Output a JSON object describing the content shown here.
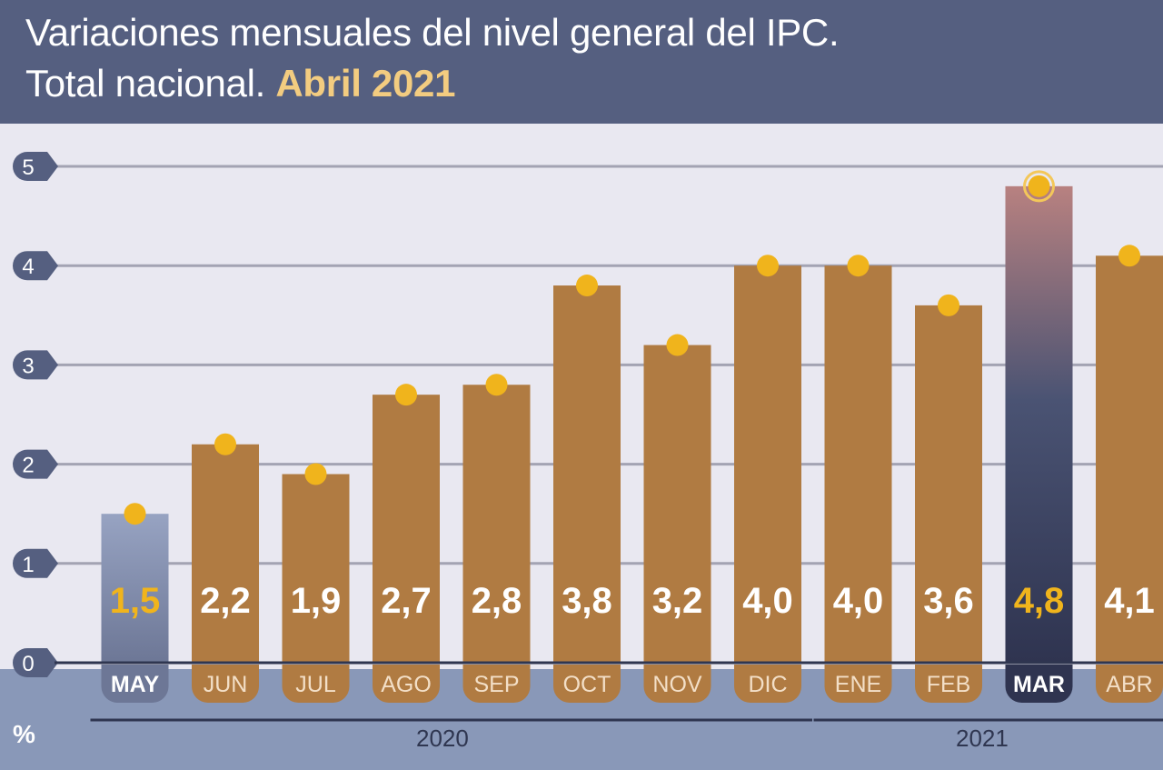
{
  "header": {
    "title_line1": "Variaciones mensuales del nivel general del IPC.",
    "title_line2": "Total nacional.",
    "title_highlight": "Abril 2021"
  },
  "chart_data": {
    "type": "bar",
    "title": "Variaciones mensuales del nivel general del IPC. Total nacional. Abril 2021",
    "ylabel": "%",
    "ylim": [
      0,
      5
    ],
    "yticks": [
      "0",
      "1",
      "2",
      "3",
      "4",
      "5"
    ],
    "categories": [
      "MAY",
      "JUN",
      "JUL",
      "AGO",
      "SEP",
      "OCT",
      "NOV",
      "DIC",
      "ENE",
      "FEB",
      "MAR",
      "ABR"
    ],
    "values": [
      1.5,
      2.2,
      1.9,
      2.7,
      2.8,
      3.8,
      3.2,
      4.0,
      4.0,
      3.6,
      4.8,
      4.1
    ],
    "value_labels": [
      "1,5",
      "2,2",
      "1,9",
      "2,7",
      "2,8",
      "3,8",
      "3,2",
      "4,0",
      "4,0",
      "3,6",
      "4,8",
      "4,1"
    ],
    "highlighted": [
      "MAY",
      "MAR"
    ],
    "year_groups": [
      {
        "label": "2020",
        "from": "MAY",
        "to": "DIC"
      },
      {
        "label": "2021",
        "from": "ENE",
        "to": "ABR"
      }
    ],
    "grid": true,
    "colors": {
      "bar": "#b07b42",
      "bar_may": "#8a95b4",
      "bar_mar_top": "#b57f7e",
      "bar_mar_bottom": "#353b57",
      "dot": "#f0b41c",
      "highlight_text": "#f0b41c",
      "value_text": "#ffffff",
      "axis_marker": "#555f80",
      "grid": "#a3a3b3"
    }
  }
}
